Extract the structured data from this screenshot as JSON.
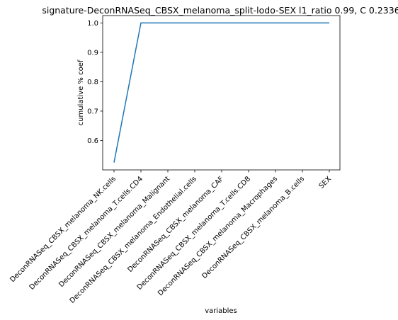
{
  "chart_data": {
    "type": "line",
    "title": "signature-DeconRNASeq_CBSX_melanoma_split-lodo-SEX l1_ratio 0.99, C 0.2336",
    "xlabel": "variables",
    "ylabel": "cumulative % coef",
    "categories": [
      "DeconRNASeq_CBSX_melanoma_NK.cells",
      "DeconRNASeq_CBSX_melanoma_T.cells.CD4",
      "DeconRNASeq_CBSX_melanoma_Malignant",
      "DeconRNASeq_CBSX_melanoma_Endothelial.cells",
      "DeconRNASeq_CBSX_melanoma_CAF",
      "DeconRNASeq_CBSX_melanoma_T.cells.CD8",
      "DeconRNASeq_CBSX_melanoma_Macrophages",
      "DeconRNASeq_CBSX_melanoma_B.cells",
      "SEX"
    ],
    "series": [
      {
        "values": [
          0.525,
          1.0,
          1.0,
          1.0,
          1.0,
          1.0,
          1.0,
          1.0,
          1.0
        ]
      }
    ],
    "ylim": [
      0.5,
      1.025
    ],
    "yticks": [
      "0.6",
      "0.7",
      "0.8",
      "0.9",
      "1.0"
    ],
    "ytick_values": [
      0.6,
      0.7,
      0.8,
      0.9,
      1.0
    ],
    "grid": false,
    "line_color": "#1f77b4"
  }
}
